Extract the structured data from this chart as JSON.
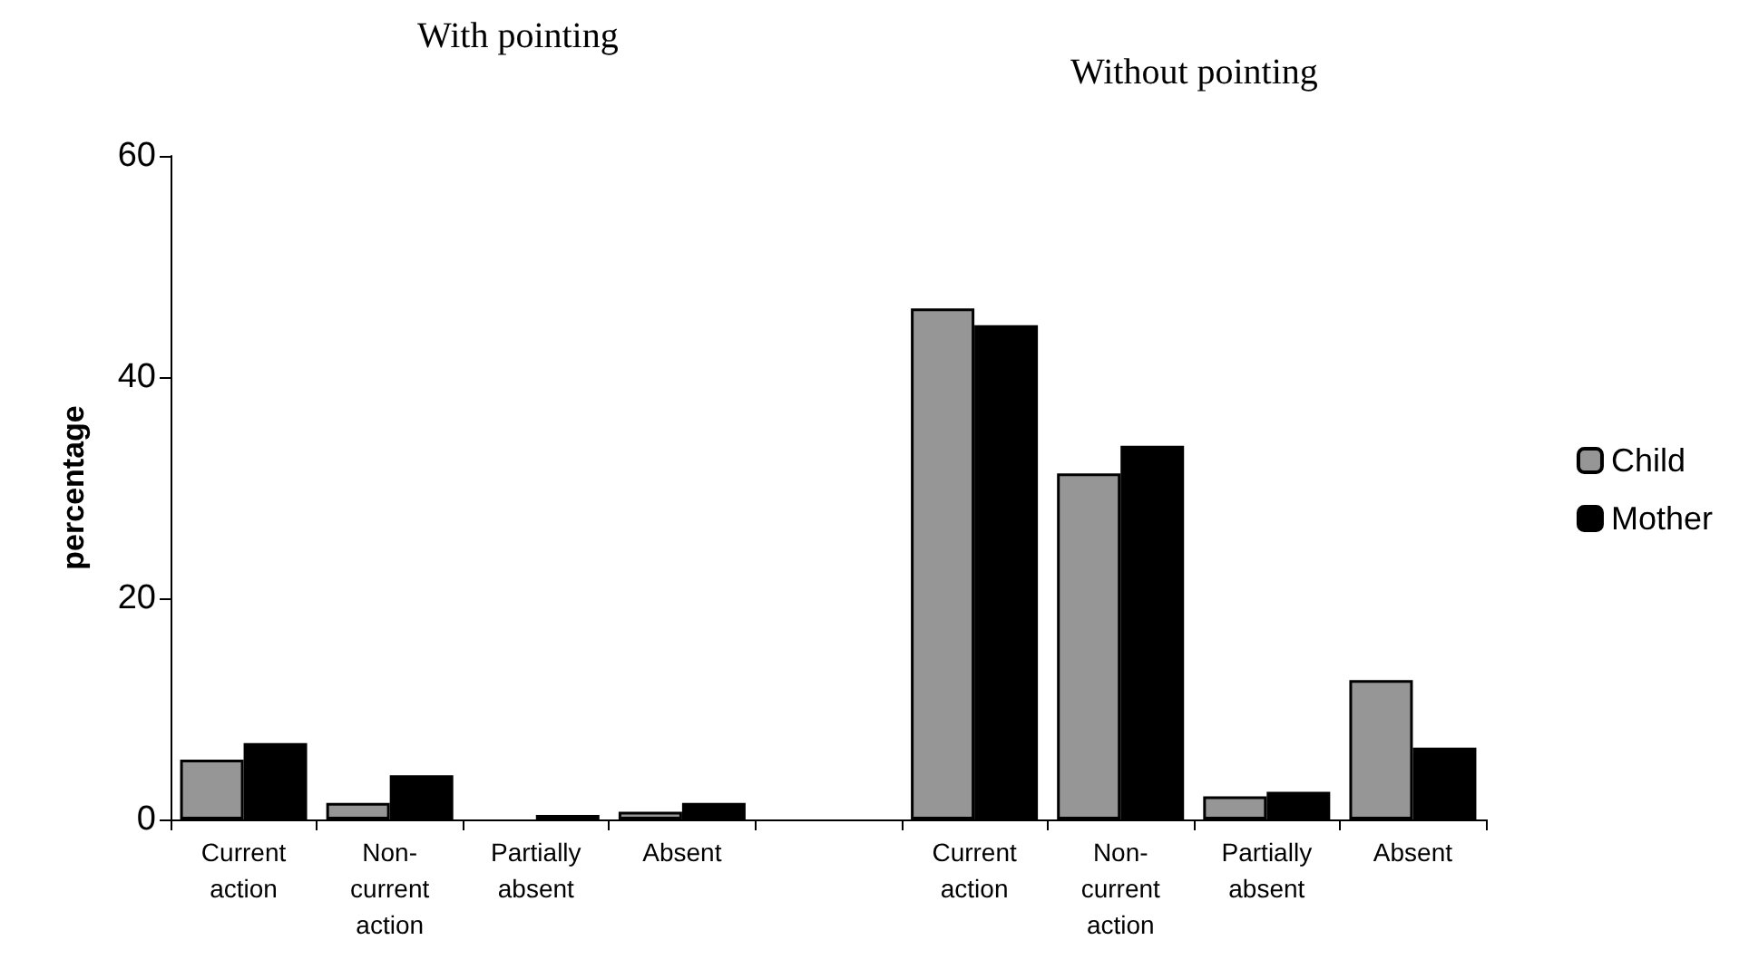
{
  "chart_data": {
    "type": "bar",
    "annotations": [
      "With pointing",
      "Without pointing"
    ],
    "ylabel": "percentage",
    "categories": [
      "Current action",
      "Non-current action",
      "Partially absent",
      "Absent",
      null,
      "Current action",
      "Non-current action",
      "Partially absent",
      "Absent"
    ],
    "series": [
      {
        "name": "Child",
        "color": "#969696",
        "values": [
          5.4,
          1.5,
          null,
          0.7,
          null,
          46.2,
          31.3,
          2.1,
          12.6
        ]
      },
      {
        "name": "Mother",
        "color": "#000000",
        "values": [
          6.9,
          4.0,
          0.4,
          1.5,
          null,
          44.7,
          33.8,
          2.5,
          6.5
        ]
      }
    ],
    "ylim": [
      0,
      60
    ],
    "yticks": [
      0,
      20,
      40,
      60
    ],
    "grid": false,
    "legend": "right"
  }
}
